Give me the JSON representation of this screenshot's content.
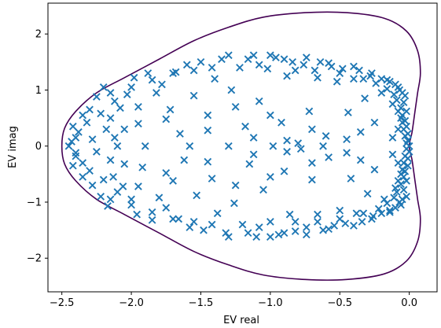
{
  "chart_data": {
    "type": "scatter",
    "title": "",
    "xlabel": "EV real",
    "ylabel": "EV imag",
    "xlim": [
      -2.6,
      0.2
    ],
    "ylim": [
      -2.6,
      2.55
    ],
    "xticks": [
      -2.5,
      -2.0,
      -1.5,
      -1.0,
      -0.5,
      0.0
    ],
    "xtick_labels": [
      "−2.5",
      "−2.0",
      "−1.5",
      "−1.0",
      "−0.5",
      "0.0"
    ],
    "yticks": [
      -2,
      -1,
      0,
      1,
      2
    ],
    "ytick_labels": [
      "−2",
      "−1",
      "0",
      "1",
      "2"
    ],
    "grid": false,
    "legend": "none",
    "marker": "x",
    "marker_color": "#1f77b4",
    "contour_color": "#440154",
    "contour": {
      "description": "closed boundary curve",
      "points": [
        [
          0.0,
          0.0
        ],
        [
          0.02,
          0.25
        ],
        [
          0.04,
          0.6
        ],
        [
          0.06,
          0.95
        ],
        [
          0.08,
          1.3
        ],
        [
          0.06,
          1.7
        ],
        [
          -0.02,
          2.05
        ],
        [
          -0.18,
          2.28
        ],
        [
          -0.45,
          2.38
        ],
        [
          -0.75,
          2.38
        ],
        [
          -1.05,
          2.3
        ],
        [
          -1.3,
          2.12
        ],
        [
          -1.55,
          1.88
        ],
        [
          -1.8,
          1.55
        ],
        [
          -2.05,
          1.22
        ],
        [
          -2.25,
          0.95
        ],
        [
          -2.4,
          0.62
        ],
        [
          -2.48,
          0.32
        ],
        [
          -2.5,
          0.0
        ],
        [
          -2.48,
          -0.32
        ],
        [
          -2.4,
          -0.62
        ],
        [
          -2.25,
          -0.95
        ],
        [
          -2.05,
          -1.22
        ],
        [
          -1.8,
          -1.55
        ],
        [
          -1.55,
          -1.88
        ],
        [
          -1.3,
          -2.12
        ],
        [
          -1.05,
          -2.3
        ],
        [
          -0.75,
          -2.38
        ],
        [
          -0.45,
          -2.38
        ],
        [
          -0.18,
          -2.28
        ],
        [
          -0.02,
          -2.05
        ],
        [
          0.06,
          -1.7
        ],
        [
          0.08,
          -1.3
        ],
        [
          0.06,
          -0.95
        ],
        [
          0.04,
          -0.6
        ],
        [
          0.02,
          -0.25
        ],
        [
          0.0,
          0.0
        ]
      ]
    },
    "series": [
      {
        "values": [
          [
            -2.45,
            0.0
          ],
          [
            -2.43,
            0.08
          ],
          [
            -2.4,
            -0.12
          ],
          [
            -2.38,
            0.25
          ],
          [
            -2.35,
            -0.3
          ],
          [
            -2.32,
            0.42
          ],
          [
            -2.3,
            -0.44
          ],
          [
            -2.28,
            0.12
          ],
          [
            -2.25,
            -0.1
          ],
          [
            -2.22,
            0.58
          ],
          [
            -2.2,
            -0.6
          ],
          [
            -2.18,
            0.3
          ],
          [
            -2.15,
            -0.25
          ],
          [
            -2.12,
            0.8
          ],
          [
            -2.1,
            -0.82
          ],
          [
            -2.3,
            0.65
          ],
          [
            -2.28,
            -0.7
          ],
          [
            -2.25,
            0.88
          ],
          [
            -2.22,
            -0.9
          ],
          [
            -2.2,
            1.05
          ],
          [
            -2.17,
            -1.07
          ],
          [
            -2.15,
            0.5
          ],
          [
            -2.13,
            -0.55
          ],
          [
            -2.12,
            0.15
          ],
          [
            -2.1,
            0.0
          ],
          [
            -2.08,
            0.68
          ],
          [
            -2.06,
            -0.72
          ],
          [
            -2.03,
            0.92
          ],
          [
            -2.0,
            -0.95
          ],
          [
            -1.98,
            1.22
          ],
          [
            -1.96,
            -1.22
          ],
          [
            -1.95,
            0.4
          ],
          [
            -1.92,
            -0.38
          ],
          [
            -1.9,
            0.0
          ],
          [
            -1.88,
            1.3
          ],
          [
            -1.85,
            -1.32
          ],
          [
            -1.82,
            0.95
          ],
          [
            -1.8,
            -0.92
          ],
          [
            -1.78,
            1.1
          ],
          [
            -1.75,
            -1.1
          ],
          [
            -1.72,
            0.65
          ],
          [
            -1.7,
            -0.62
          ],
          [
            -1.68,
            1.32
          ],
          [
            -1.66,
            -1.3
          ],
          [
            -1.65,
            0.22
          ],
          [
            -1.62,
            -0.25
          ],
          [
            -1.6,
            1.45
          ],
          [
            -1.58,
            -1.45
          ],
          [
            -1.55,
            0.9
          ],
          [
            -1.53,
            -0.88
          ],
          [
            -1.5,
            1.5
          ],
          [
            -1.48,
            -1.5
          ],
          [
            -1.45,
            0.55
          ],
          [
            -1.42,
            -0.58
          ],
          [
            -1.4,
            1.2
          ],
          [
            -1.38,
            -1.2
          ],
          [
            -1.35,
            1.55
          ],
          [
            -1.32,
            -1.55
          ],
          [
            -1.3,
            0.0
          ],
          [
            -1.28,
            1.0
          ],
          [
            -1.26,
            -1.02
          ],
          [
            -1.22,
            1.4
          ],
          [
            -1.2,
            -1.4
          ],
          [
            -1.18,
            0.35
          ],
          [
            -1.15,
            -0.32
          ],
          [
            -1.12,
            1.62
          ],
          [
            -1.1,
            -1.62
          ],
          [
            -1.08,
            0.8
          ],
          [
            -1.05,
            -0.78
          ],
          [
            -1.02,
            1.38
          ],
          [
            -1.0,
            -1.35
          ],
          [
            -0.98,
            0.0
          ],
          [
            -0.96,
            1.58
          ],
          [
            -0.94,
            -1.58
          ],
          [
            -0.92,
            0.42
          ],
          [
            -0.9,
            -0.45
          ],
          [
            -0.88,
            1.25
          ],
          [
            -0.86,
            -1.22
          ],
          [
            -0.84,
            1.5
          ],
          [
            -0.82,
            -1.52
          ],
          [
            -0.8,
            0.05
          ],
          [
            -0.78,
            -0.05
          ],
          [
            -0.76,
            1.45
          ],
          [
            -0.74,
            -1.45
          ],
          [
            -0.72,
            0.62
          ],
          [
            -0.7,
            -0.6
          ],
          [
            -0.68,
            1.35
          ],
          [
            -0.66,
            -1.35
          ],
          [
            -0.64,
            1.5
          ],
          [
            -0.62,
            -1.5
          ],
          [
            -0.6,
            0.18
          ],
          [
            -0.58,
            -0.2
          ],
          [
            -0.56,
            1.42
          ],
          [
            -0.54,
            -1.42
          ],
          [
            -0.52,
            1.15
          ],
          [
            -0.5,
            -1.15
          ],
          [
            -0.48,
            1.38
          ],
          [
            -0.46,
            -1.38
          ],
          [
            -0.44,
            0.6
          ],
          [
            -0.42,
            -0.58
          ],
          [
            -0.4,
            1.2
          ],
          [
            -0.38,
            -1.2
          ],
          [
            -0.36,
            1.35
          ],
          [
            -0.34,
            -1.35
          ],
          [
            -0.32,
            0.85
          ],
          [
            -0.3,
            -0.85
          ],
          [
            -0.28,
            1.25
          ],
          [
            -0.26,
            -1.25
          ],
          [
            -0.24,
            1.12
          ],
          [
            -0.22,
            -1.12
          ],
          [
            -0.2,
            0.95
          ],
          [
            -0.18,
            -0.95
          ],
          [
            -0.16,
            1.18
          ],
          [
            -0.14,
            -1.18
          ],
          [
            -0.12,
            0.75
          ],
          [
            -0.1,
            -0.75
          ],
          [
            -0.08,
            1.05
          ],
          [
            -0.06,
            -1.05
          ],
          [
            -0.05,
            0.55
          ],
          [
            -0.04,
            -0.55
          ],
          [
            -0.03,
            0.9
          ],
          [
            -0.02,
            -0.9
          ],
          [
            -0.02,
            0.35
          ],
          [
            -0.01,
            -0.35
          ],
          [
            -0.01,
            0.1
          ],
          [
            0.0,
            -0.1
          ],
          [
            0.0,
            0.0
          ],
          [
            -0.01,
            0.22
          ],
          [
            -0.01,
            -0.22
          ],
          [
            -0.02,
            0.62
          ],
          [
            -0.02,
            -0.62
          ],
          [
            -0.03,
            0.45
          ],
          [
            -0.03,
            -0.45
          ],
          [
            -0.04,
            0.78
          ],
          [
            -0.04,
            -0.78
          ],
          [
            -0.05,
            0.95
          ],
          [
            -0.05,
            -0.95
          ],
          [
            -0.06,
            0.68
          ],
          [
            -0.06,
            -0.68
          ],
          [
            -0.07,
            1.0
          ],
          [
            -0.07,
            -1.0
          ],
          [
            -0.08,
            0.3
          ],
          [
            -0.08,
            -0.3
          ],
          [
            -0.1,
            1.1
          ],
          [
            -0.1,
            -1.1
          ],
          [
            -0.12,
            0.15
          ],
          [
            -0.12,
            -0.15
          ],
          [
            -0.14,
            1.15
          ],
          [
            -0.14,
            -1.15
          ],
          [
            -0.25,
            0.42
          ],
          [
            -0.25,
            -0.42
          ],
          [
            -0.35,
            0.25
          ],
          [
            -0.35,
            -0.25
          ],
          [
            -0.45,
            0.12
          ],
          [
            -0.45,
            -0.12
          ],
          [
            -0.62,
            0.0
          ],
          [
            -0.7,
            0.3
          ],
          [
            -0.7,
            -0.3
          ],
          [
            -0.88,
            0.1
          ],
          [
            -0.88,
            -0.1
          ],
          [
            -1.0,
            0.55
          ],
          [
            -1.0,
            -0.55
          ],
          [
            -1.12,
            0.15
          ],
          [
            -1.12,
            -0.15
          ],
          [
            -1.25,
            0.7
          ],
          [
            -1.25,
            -0.7
          ],
          [
            -1.45,
            0.28
          ],
          [
            -1.45,
            -0.28
          ],
          [
            -1.58,
            0.0
          ],
          [
            -1.75,
            0.48
          ],
          [
            -1.75,
            -0.48
          ],
          [
            -1.95,
            0.7
          ],
          [
            -1.95,
            -0.72
          ],
          [
            -2.05,
            0.3
          ],
          [
            -2.05,
            -0.32
          ],
          [
            -0.02,
            0.05
          ],
          [
            -0.02,
            -0.05
          ],
          [
            -0.03,
            0.18
          ],
          [
            -0.03,
            -0.18
          ],
          [
            -0.04,
            0.3
          ],
          [
            -0.04,
            -0.3
          ],
          [
            -0.05,
            0.42
          ],
          [
            -0.05,
            -0.42
          ],
          [
            -0.06,
            0.5
          ],
          [
            -0.06,
            -0.5
          ],
          [
            -0.08,
            0.62
          ],
          [
            -0.08,
            -0.62
          ],
          [
            -0.09,
            0.82
          ],
          [
            -0.09,
            -0.82
          ],
          [
            -0.11,
            0.92
          ],
          [
            -0.11,
            -0.92
          ],
          [
            -0.16,
            1.02
          ],
          [
            -0.16,
            -1.02
          ],
          [
            -0.2,
            1.2
          ],
          [
            -0.2,
            -1.2
          ],
          [
            -0.27,
            1.3
          ],
          [
            -0.27,
            -1.3
          ],
          [
            -0.33,
            1.2
          ],
          [
            -0.33,
            -1.2
          ],
          [
            -0.4,
            1.42
          ],
          [
            -0.4,
            -1.42
          ],
          [
            -0.5,
            1.3
          ],
          [
            -0.5,
            -1.3
          ],
          [
            -0.58,
            1.48
          ],
          [
            -0.58,
            -1.48
          ],
          [
            -0.66,
            1.22
          ],
          [
            -0.66,
            -1.22
          ],
          [
            -0.74,
            1.58
          ],
          [
            -0.74,
            -1.58
          ],
          [
            -0.82,
            1.35
          ],
          [
            -0.82,
            -1.35
          ],
          [
            -0.9,
            1.55
          ],
          [
            -0.9,
            -1.55
          ],
          [
            -1.0,
            1.62
          ],
          [
            -1.0,
            -1.62
          ],
          [
            -1.08,
            1.45
          ],
          [
            -1.08,
            -1.45
          ],
          [
            -1.16,
            1.55
          ],
          [
            -1.16,
            -1.55
          ],
          [
            -1.3,
            1.62
          ],
          [
            -1.3,
            -1.62
          ],
          [
            -1.42,
            1.4
          ],
          [
            -1.42,
            -1.4
          ],
          [
            -1.55,
            1.35
          ],
          [
            -1.55,
            -1.35
          ],
          [
            -1.7,
            1.3
          ],
          [
            -1.7,
            -1.3
          ],
          [
            -1.85,
            1.18
          ],
          [
            -1.85,
            -1.18
          ],
          [
            -2.0,
            1.05
          ],
          [
            -2.0,
            -1.05
          ],
          [
            -2.15,
            0.95
          ],
          [
            -2.15,
            -0.95
          ],
          [
            -2.35,
            0.55
          ],
          [
            -2.35,
            -0.55
          ],
          [
            -2.42,
            0.35
          ],
          [
            -2.42,
            -0.35
          ],
          [
            -2.4,
            0.15
          ],
          [
            -2.4,
            -0.18
          ]
        ]
      }
    ]
  }
}
